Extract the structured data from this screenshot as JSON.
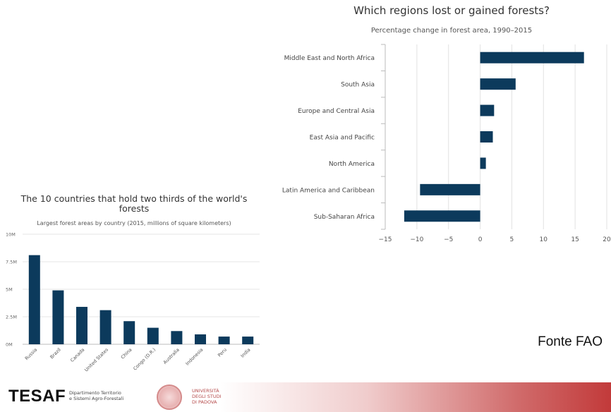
{
  "chart_data": [
    {
      "type": "bar",
      "orientation": "horizontal",
      "title": "Which regions lost or gained forests?",
      "subtitle": "Percentage change in forest area, 1990–2015",
      "categories": [
        "Middle East and North Africa",
        "South Asia",
        "Europe and Central Asia",
        "East Asia and Pacific",
        "North America",
        "Latin America and Caribbean",
        "Sub-Saharan Africa"
      ],
      "values": [
        16.4,
        5.6,
        2.2,
        2.0,
        0.9,
        -9.5,
        -12.0
      ],
      "xlim": [
        -15,
        20
      ],
      "xticks": [
        "−15",
        "−10",
        "−5",
        "0",
        "5",
        "10",
        "15",
        "20"
      ],
      "tick_values": [
        -15,
        -10,
        -5,
        0,
        5,
        10,
        15,
        20
      ],
      "grid": "vertical",
      "bar_color": "#0c3a5c"
    },
    {
      "type": "bar",
      "title": "The 10 countries that hold two thirds of the world's forests",
      "subtitle": "Largest forest areas by country (2015, millions of square kilometers)",
      "categories": [
        "Russia",
        "Brazil",
        "Canada",
        "United States",
        "China",
        "Congo (D.R.)",
        "Australia",
        "Indonesia",
        "Peru",
        "India"
      ],
      "values": [
        8.1,
        4.9,
        3.4,
        3.1,
        2.1,
        1.5,
        1.2,
        0.9,
        0.7,
        0.7
      ],
      "ylim": [
        0,
        10
      ],
      "yticks": [
        "0M",
        "2.5M",
        "5M",
        "7.5M",
        "10M"
      ],
      "tick_values": [
        0,
        2.5,
        5,
        7.5,
        10
      ],
      "grid": "horizontal",
      "bar_color": "#0c3a5c"
    }
  ],
  "source_label": "Fonte FAO",
  "footer": {
    "logo": "TESAF",
    "department": [
      "Dipartimento Territorio",
      "e Sistemi Agro-Forestali"
    ],
    "university": [
      "UNIVERSITÀ",
      "DEGLI STUDI",
      "DI PADOVA"
    ]
  }
}
